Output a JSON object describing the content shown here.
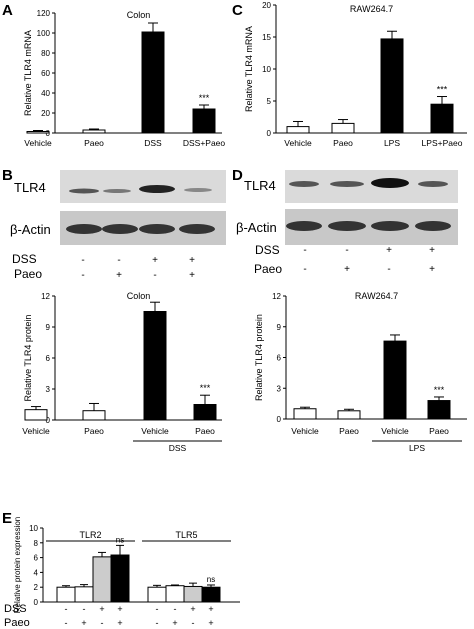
{
  "panels": {
    "A": {
      "label": "A"
    },
    "B": {
      "label": "B"
    },
    "C": {
      "label": "C"
    },
    "D": {
      "label": "D"
    },
    "E": {
      "label": "E"
    }
  },
  "blots": {
    "B": {
      "top_label": "TLR4",
      "bottom_label": "β-Actin",
      "rows": [
        {
          "name": "DSS",
          "signs": [
            "-",
            "-",
            "+",
            "+"
          ]
        },
        {
          "name": "Paeo",
          "signs": [
            "-",
            "+",
            "-",
            "+"
          ]
        }
      ]
    },
    "D": {
      "top_label": "TLR4",
      "bottom_label": "β-Actin",
      "rows": [
        {
          "name": "DSS",
          "signs": [
            "-",
            "-",
            "+",
            "+"
          ]
        },
        {
          "name": "Paeo",
          "signs": [
            "-",
            "+",
            "-",
            "+"
          ]
        }
      ]
    }
  },
  "chart_data": [
    {
      "id": "A",
      "type": "bar",
      "title": "Colon",
      "ylabel": "Relative TLR4 mRNA",
      "categories": [
        "Vehicle",
        "Paeo",
        "DSS",
        "DSS+Paeo"
      ],
      "values": [
        1.5,
        3,
        101,
        24
      ],
      "errors": [
        1,
        1,
        9,
        4
      ],
      "fills": [
        "#ffffff",
        "#ffffff",
        "#000000",
        "#000000"
      ],
      "annotations": [
        "",
        "",
        "",
        "***"
      ],
      "ylim": [
        0,
        120
      ],
      "yticks": [
        0,
        20,
        40,
        60,
        80,
        100,
        120
      ],
      "group_label": ""
    },
    {
      "id": "C",
      "type": "bar",
      "title": "RAW264.7",
      "ylabel": "Relative TLR4 mRNA",
      "categories": [
        "Vehicle",
        "Paeo",
        "LPS",
        "LPS+Paeo"
      ],
      "values": [
        1,
        1.5,
        14.7,
        4.5
      ],
      "errors": [
        0.8,
        0.6,
        1.2,
        1.2
      ],
      "fills": [
        "#ffffff",
        "#ffffff",
        "#000000",
        "#000000"
      ],
      "annotations": [
        "",
        "",
        "",
        "***"
      ],
      "ylim": [
        0,
        20
      ],
      "yticks": [
        0,
        5,
        10,
        15,
        20
      ],
      "group_label": ""
    },
    {
      "id": "B2",
      "type": "bar",
      "title": "Colon",
      "ylabel": "Relative TLR4 protein",
      "categories": [
        "Vehicle",
        "Paeo",
        "Vehicle",
        "Paeo"
      ],
      "values": [
        1,
        0.9,
        10.5,
        1.5
      ],
      "errors": [
        0.3,
        0.7,
        0.9,
        0.9
      ],
      "fills": [
        "#ffffff",
        "#ffffff",
        "#000000",
        "#000000"
      ],
      "annotations": [
        "",
        "",
        "",
        "***"
      ],
      "ylim": [
        0,
        12
      ],
      "yticks": [
        0,
        3,
        6,
        9,
        12
      ],
      "group_label": "DSS"
    },
    {
      "id": "D2",
      "type": "bar",
      "title": "RAW264.7",
      "ylabel": "Relative TLR4 protein",
      "categories": [
        "Vehicle",
        "Paeo",
        "Vehicle",
        "Paeo"
      ],
      "values": [
        1,
        0.8,
        7.6,
        1.8
      ],
      "errors": [
        0.15,
        0.15,
        0.6,
        0.35
      ],
      "fills": [
        "#ffffff",
        "#ffffff",
        "#000000",
        "#000000"
      ],
      "annotations": [
        "",
        "",
        "",
        "***"
      ],
      "ylim": [
        0,
        12
      ],
      "yticks": [
        0,
        3,
        6,
        9,
        12
      ],
      "group_label": "LPS"
    },
    {
      "id": "E",
      "type": "bar",
      "title": "",
      "ylabel": "Relative protein expression",
      "groups": [
        {
          "name": "TLR2",
          "values": [
            2.0,
            2.05,
            6.1,
            6.35
          ],
          "errors": [
            0.2,
            0.3,
            0.6,
            1.3
          ],
          "annotations": [
            "",
            "",
            "",
            "ns"
          ]
        },
        {
          "name": "TLR5",
          "values": [
            2.0,
            2.2,
            2.1,
            2.0
          ],
          "errors": [
            0.25,
            0.1,
            0.45,
            0.3
          ],
          "annotations": [
            "",
            "",
            "",
            "ns"
          ]
        }
      ],
      "fills": [
        "#ffffff",
        "#ffffff",
        "#cccccc",
        "#000000"
      ],
      "ylim": [
        0,
        10
      ],
      "yticks": [
        0,
        2,
        4,
        6,
        8,
        10
      ],
      "condition_rows": [
        {
          "name": "DSS",
          "signs": [
            "-",
            "-",
            "+",
            "+",
            "-",
            "-",
            "+",
            "+"
          ]
        },
        {
          "name": "Paeo",
          "signs": [
            "-",
            "+",
            "-",
            "+",
            "-",
            "+",
            "-",
            "+"
          ]
        }
      ]
    }
  ]
}
